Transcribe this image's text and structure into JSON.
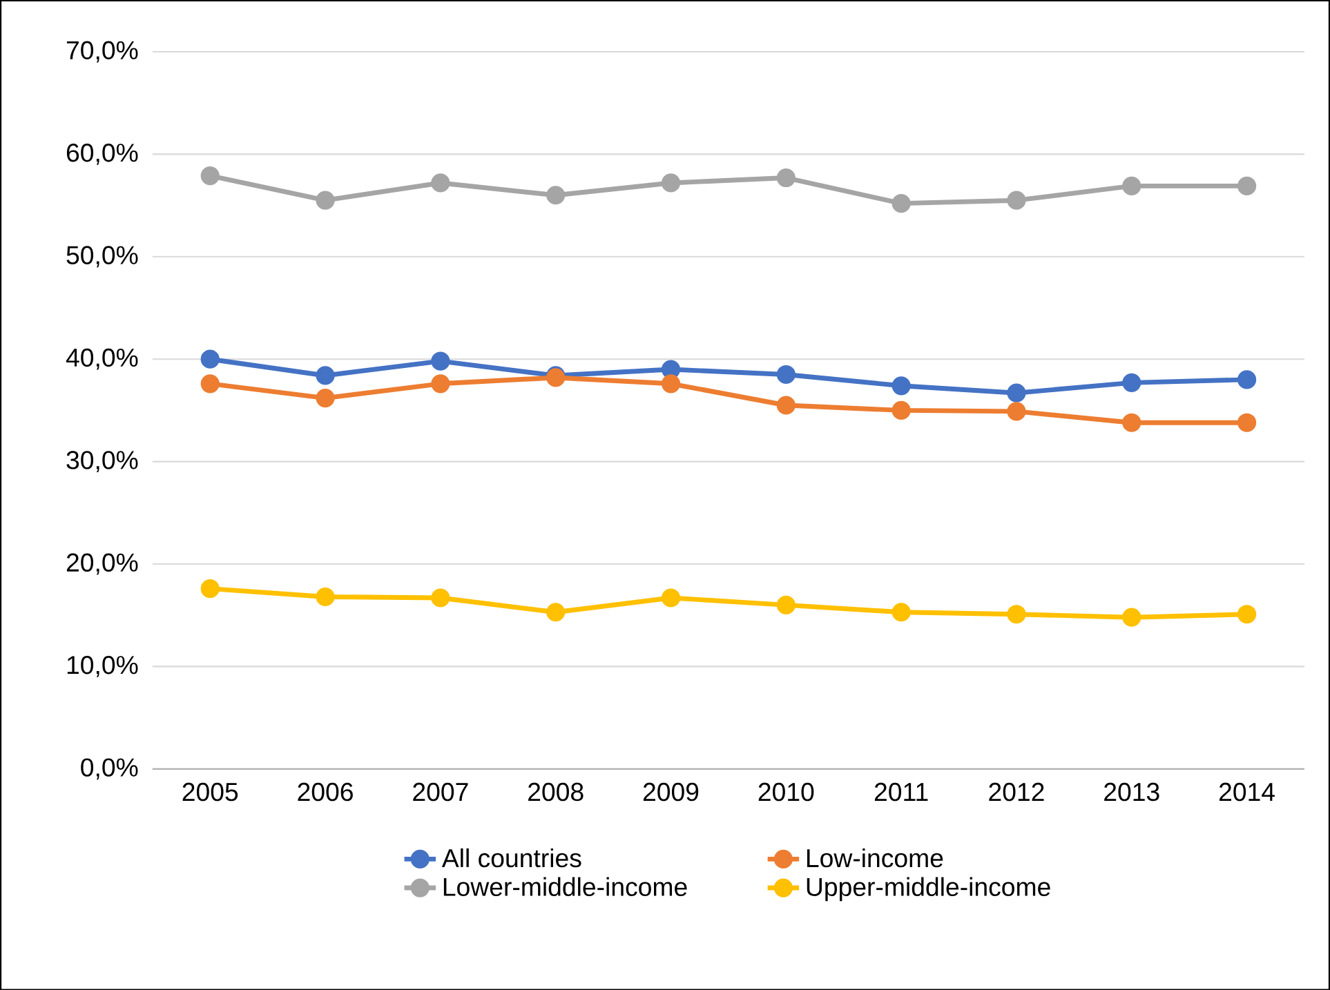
{
  "chart_data": {
    "type": "line",
    "categories": [
      "2005",
      "2006",
      "2007",
      "2008",
      "2009",
      "2010",
      "2011",
      "2012",
      "2013",
      "2014"
    ],
    "series": [
      {
        "name": "All countries",
        "color": "#4472c4",
        "values": [
          40.0,
          38.4,
          39.8,
          38.4,
          39.0,
          38.5,
          37.4,
          36.7,
          37.7,
          38.0
        ]
      },
      {
        "name": "Low-income",
        "color": "#ed7d31",
        "values": [
          37.6,
          36.2,
          37.6,
          38.2,
          37.6,
          35.5,
          35.0,
          34.9,
          33.8,
          33.8
        ]
      },
      {
        "name": "Lower-middle-income",
        "color": "#a5a5a5",
        "values": [
          57.9,
          55.5,
          57.2,
          56.0,
          57.2,
          57.7,
          55.2,
          55.5,
          56.9,
          56.9
        ]
      },
      {
        "name": "Upper-middle-income",
        "color": "#ffc000",
        "values": [
          17.6,
          16.8,
          16.7,
          15.3,
          16.7,
          16.0,
          15.3,
          15.1,
          14.8,
          15.1
        ]
      }
    ],
    "ylim": [
      0,
      70
    ],
    "yticks": [
      {
        "value": 0,
        "label": "0,0%"
      },
      {
        "value": 10,
        "label": "10,0%"
      },
      {
        "value": 20,
        "label": "20,0%"
      },
      {
        "value": 30,
        "label": "30,0%"
      },
      {
        "value": 40,
        "label": "40,0%"
      },
      {
        "value": 50,
        "label": "50,0%"
      },
      {
        "value": 60,
        "label": "60,0%"
      },
      {
        "value": 70,
        "label": "70,0%"
      }
    ],
    "grid": "y",
    "legend": "bottom",
    "marker": "circle",
    "line_style": "solid"
  }
}
